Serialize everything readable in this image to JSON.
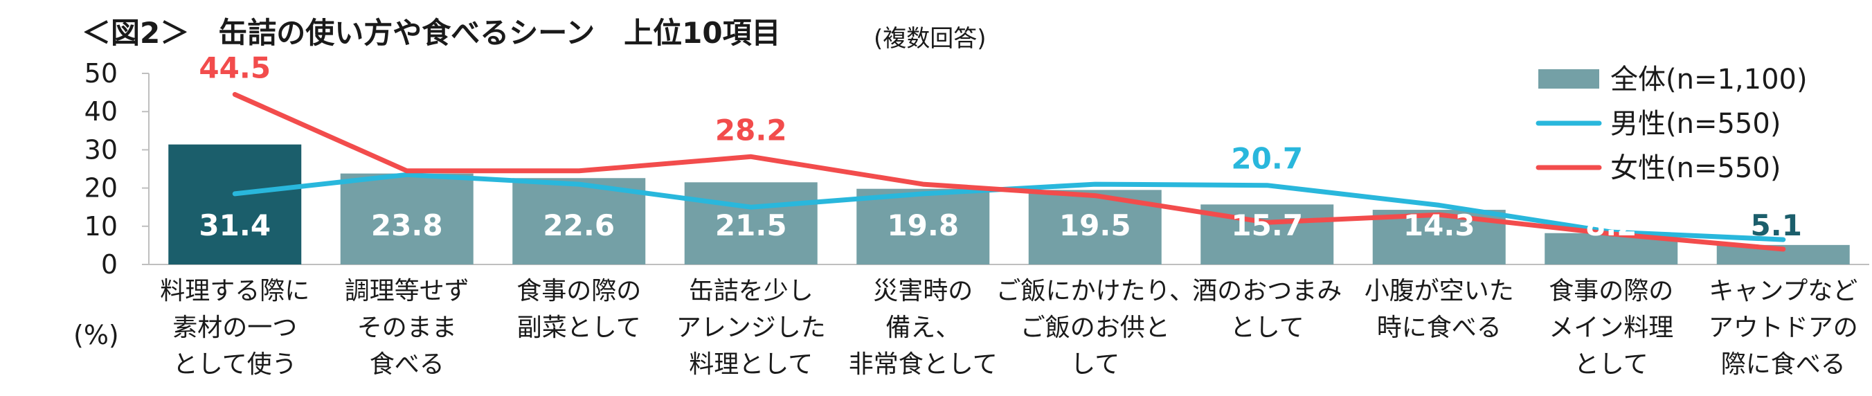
{
  "header": {
    "title": "＜図2＞　缶詰の使い方や食べるシーン　上位10項目",
    "subtitle": "(複数回答)",
    "unit": "(%)"
  },
  "chart_data": {
    "type": "bar",
    "title": "＜図2＞　缶詰の使い方や食べるシーン　上位10項目",
    "ylim": [
      0,
      50
    ],
    "yticks": [
      "0",
      "10",
      "20",
      "30",
      "40",
      "50"
    ],
    "grid": false,
    "legend_position": "top-right",
    "categories": [
      [
        "料理する際に",
        "素材の一つ",
        "として使う"
      ],
      [
        "調理等せず",
        "そのまま",
        "食べる"
      ],
      [
        "食事の際の",
        "副菜として"
      ],
      [
        "缶詰を少し",
        "アレンジした",
        "料理として"
      ],
      [
        "災害時の",
        "備え、",
        "非常食として"
      ],
      [
        "ご飯にかけたり、",
        "ご飯のお供と",
        "して"
      ],
      [
        "酒のおつまみ",
        "として"
      ],
      [
        "小腹が空いた",
        "時に食べる"
      ],
      [
        "食事の際の",
        "メイン料理",
        "として"
      ],
      [
        "キャンプなど",
        "アウトドアの",
        "際に食べる"
      ]
    ],
    "series": [
      {
        "name": "全体(n=1,100)",
        "type": "bar",
        "color": "#74a0a6",
        "highlight_color": "#1b5e6b",
        "values": [
          31.4,
          23.8,
          22.6,
          21.5,
          19.8,
          19.5,
          15.7,
          14.3,
          8.2,
          5.1
        ],
        "labels": [
          "31.4",
          "23.8",
          "22.6",
          "21.5",
          "19.8",
          "19.5",
          "15.7",
          "14.3",
          "8.2",
          "5.1"
        ]
      },
      {
        "name": "男性(n=550)",
        "type": "line",
        "color": "#29b7dc",
        "values": [
          18.5,
          23.5,
          21.0,
          15.0,
          18.5,
          21.0,
          20.7,
          15.5,
          8.5,
          6.5
        ]
      },
      {
        "name": "女性(n=550)",
        "type": "line",
        "color": "#f24c4c",
        "values": [
          44.5,
          24.5,
          24.5,
          28.2,
          21.0,
          18.0,
          11.0,
          13.0,
          8.0,
          4.0
        ]
      }
    ],
    "annotations": [
      {
        "series": 2,
        "index": 0,
        "text": "44.5",
        "color": "#f24c4c"
      },
      {
        "series": 2,
        "index": 3,
        "text": "28.2",
        "color": "#f24c4c"
      },
      {
        "series": 1,
        "index": 6,
        "text": "20.7",
        "color": "#29b7dc"
      }
    ]
  }
}
